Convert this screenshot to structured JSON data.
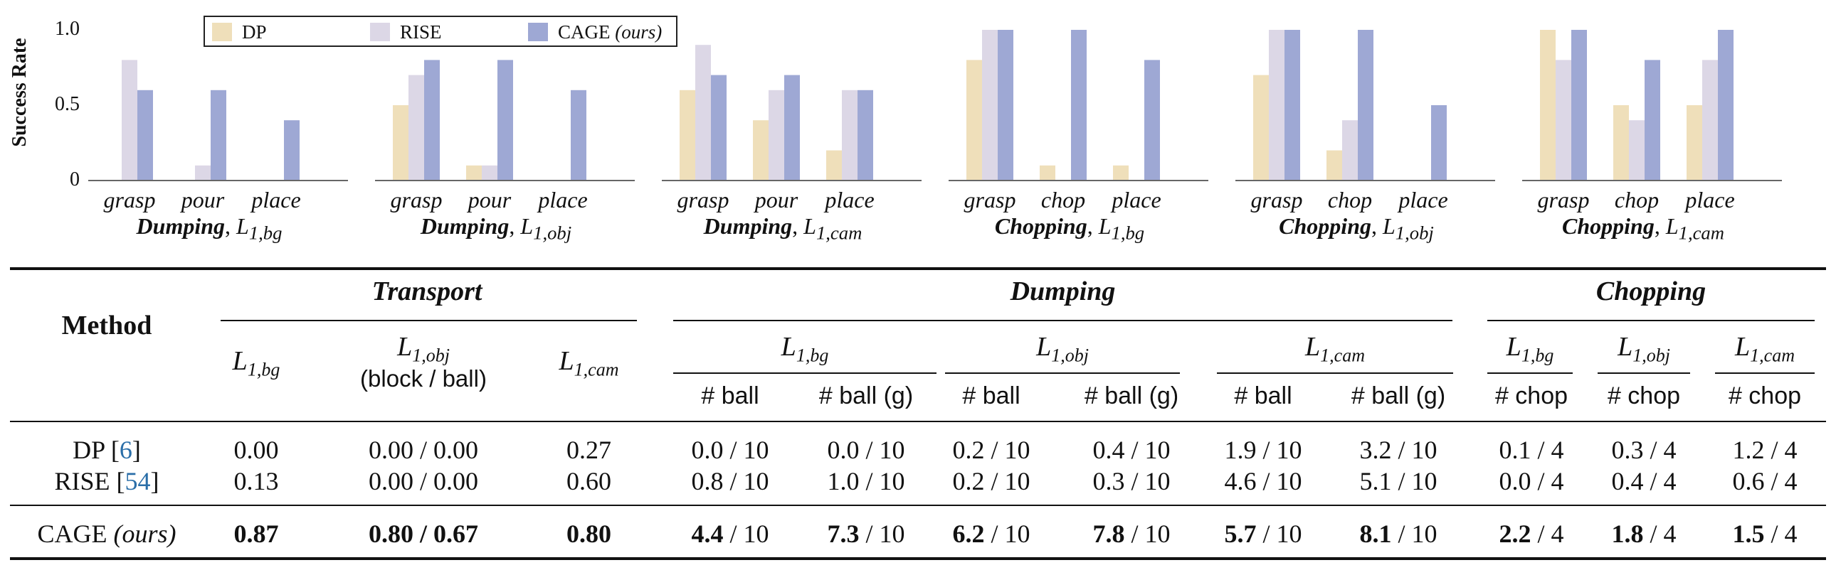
{
  "chart_data": [
    {
      "type": "bar",
      "title": "Dumping, L1,bg",
      "categories": [
        "grasp",
        "pour",
        "place"
      ],
      "ylim": [
        0,
        1
      ],
      "series": [
        {
          "name": "DP",
          "values": [
            0,
            0,
            0
          ]
        },
        {
          "name": "RISE",
          "values": [
            0.8,
            0.1,
            0
          ]
        },
        {
          "name": "CAGE (ours)",
          "values": [
            0.6,
            0.6,
            0.4
          ]
        }
      ]
    },
    {
      "type": "bar",
      "title": "Dumping, L1,obj",
      "categories": [
        "grasp",
        "pour",
        "place"
      ],
      "ylim": [
        0,
        1
      ],
      "series": [
        {
          "name": "DP",
          "values": [
            0.5,
            0.1,
            0
          ]
        },
        {
          "name": "RISE",
          "values": [
            0.7,
            0.1,
            0
          ]
        },
        {
          "name": "CAGE (ours)",
          "values": [
            0.8,
            0.8,
            0.6
          ]
        }
      ]
    },
    {
      "type": "bar",
      "title": "Dumping, L1,cam",
      "categories": [
        "grasp",
        "pour",
        "place"
      ],
      "ylim": [
        0,
        1
      ],
      "series": [
        {
          "name": "DP",
          "values": [
            0.6,
            0.4,
            0.2
          ]
        },
        {
          "name": "RISE",
          "values": [
            0.9,
            0.6,
            0.6
          ]
        },
        {
          "name": "CAGE (ours)",
          "values": [
            0.7,
            0.7,
            0.6
          ]
        }
      ]
    },
    {
      "type": "bar",
      "title": "Chopping, L1,bg",
      "categories": [
        "grasp",
        "chop",
        "place"
      ],
      "ylim": [
        0,
        1
      ],
      "series": [
        {
          "name": "DP",
          "values": [
            0.8,
            0.1,
            0.1
          ]
        },
        {
          "name": "RISE",
          "values": [
            1.0,
            0,
            0
          ]
        },
        {
          "name": "CAGE (ours)",
          "values": [
            1.0,
            1.0,
            0.8
          ]
        }
      ]
    },
    {
      "type": "bar",
      "title": "Chopping, L1,obj",
      "categories": [
        "grasp",
        "chop",
        "place"
      ],
      "ylim": [
        0,
        1
      ],
      "series": [
        {
          "name": "DP",
          "values": [
            0.7,
            0.2,
            0
          ]
        },
        {
          "name": "RISE",
          "values": [
            1.0,
            0.4,
            0
          ]
        },
        {
          "name": "CAGE (ours)",
          "values": [
            1.0,
            1.0,
            0.5
          ]
        }
      ]
    },
    {
      "type": "bar",
      "title": "Chopping, L1,cam",
      "categories": [
        "grasp",
        "chop",
        "place"
      ],
      "ylim": [
        0,
        1
      ],
      "series": [
        {
          "name": "DP",
          "values": [
            1.0,
            0.5,
            0.5
          ]
        },
        {
          "name": "RISE",
          "values": [
            0.8,
            0.4,
            0.8
          ]
        },
        {
          "name": "CAGE (ours)",
          "values": [
            1.0,
            0.8,
            1.0
          ]
        }
      ]
    }
  ],
  "charts": {
    "ylabel": "Success Rate",
    "yticks": [
      "1.0",
      "0.5",
      "0"
    ],
    "colors": {
      "DP": "#efdfba",
      "RISE": "#dcd7e6",
      "CAGE": "#9ea8d4",
      "axis": "#666666"
    },
    "legend": {
      "dp": "DP",
      "rise": "RISE",
      "cage": "CAGE",
      "ours": "(ours)"
    },
    "captions": [
      {
        "task": "Dumping",
        "sub": "1,bg"
      },
      {
        "task": "Dumping",
        "sub": "1,obj"
      },
      {
        "task": "Dumping",
        "sub": "1,cam"
      },
      {
        "task": "Chopping",
        "sub": "1,bg"
      },
      {
        "task": "Chopping",
        "sub": "1,obj"
      },
      {
        "task": "Chopping",
        "sub": "1,cam"
      }
    ]
  },
  "table": {
    "method_header": "Method",
    "groups": {
      "transport": "Transport",
      "dumping": "Dumping",
      "chopping": "Chopping"
    },
    "levels": {
      "bg": "1,bg",
      "obj": "1,obj",
      "cam": "1,cam"
    },
    "transport_obj_note": "(block / ball)",
    "subheaders": {
      "ball": "# ball",
      "ball_g": "# ball (g)",
      "chop": "# chop"
    },
    "rows": [
      {
        "method": "DP",
        "cite": "6",
        "transport": [
          "0.00",
          "0.00 / 0.00",
          "0.27"
        ],
        "dumping": [
          "0.0 / 10",
          "0.0 / 10",
          "0.2 / 10",
          "0.4 / 10",
          "1.9 / 10",
          "3.2 / 10"
        ],
        "chopping": [
          "0.1 / 4",
          "0.3 / 4",
          "1.2 / 4"
        ]
      },
      {
        "method": "RISE",
        "cite": "54",
        "transport": [
          "0.13",
          "0.00 / 0.00",
          "0.60"
        ],
        "dumping": [
          "0.8 / 10",
          "1.0 / 10",
          "0.2 / 10",
          "0.3 / 10",
          "4.6 / 10",
          "5.1 / 10"
        ],
        "chopping": [
          "0.0 / 4",
          "0.4 / 4",
          "0.6 / 4"
        ]
      }
    ],
    "ours": {
      "method": "CAGE",
      "tag": "(ours)",
      "transport": [
        "0.87",
        "0.80",
        "0.67",
        "0.80"
      ],
      "dumping": [
        "4.4",
        "7.3",
        "6.2",
        "7.8",
        "5.7",
        "8.1"
      ],
      "dumping_den": "/ 10",
      "chopping": [
        "2.2",
        "1.8",
        "1.5"
      ],
      "chopping_den": "/ 4"
    }
  }
}
